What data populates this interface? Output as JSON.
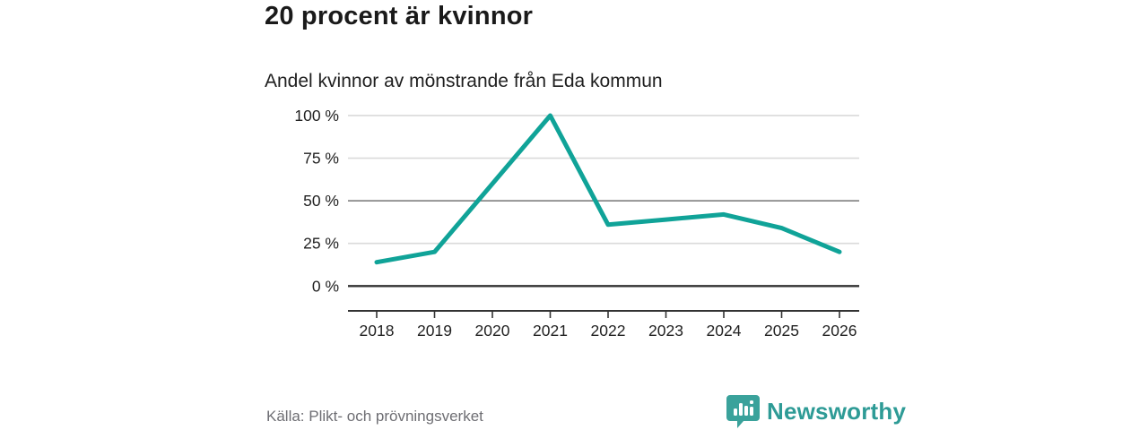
{
  "header": {
    "title": "20 procent är kvinnor",
    "subtitle": "Andel kvinnor av mönstrande från Eda kommun"
  },
  "chart_data": {
    "type": "line",
    "title": "20 procent är kvinnor",
    "subtitle": "Andel kvinnor av mönstrande från Eda kommun",
    "categories": [
      "2018",
      "2019",
      "2020",
      "2021",
      "2022",
      "2023",
      "2024",
      "2025",
      "2026"
    ],
    "values": [
      14,
      20,
      60,
      100,
      36,
      39,
      42,
      34,
      20
    ],
    "unit": "%",
    "ylim": [
      0,
      100
    ],
    "y_ticks": [
      {
        "value": 0,
        "label": "0 %"
      },
      {
        "value": 25,
        "label": "25 %"
      },
      {
        "value": 50,
        "label": "50 %"
      },
      {
        "value": 75,
        "label": "75 %"
      },
      {
        "value": 100,
        "label": "100 %"
      }
    ],
    "grid": true,
    "legend": "none",
    "line_color": "#10a398"
  },
  "colors": {
    "line": "#10a398",
    "grid_light": "#dadada",
    "grid_mid": "#757575",
    "grid_zero": "#333333",
    "axis": "#333333",
    "tick_label": "#222222",
    "brand_teal": "#2e9b96"
  },
  "footer": {
    "source": "Källa: Plikt- och prövningsverket",
    "brand": "Newsworthy",
    "brand_icon": "speech-bubble-bar-chart"
  }
}
